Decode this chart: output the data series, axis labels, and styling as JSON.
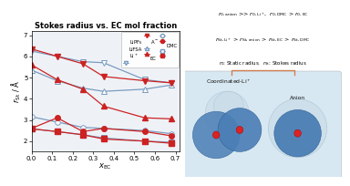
{
  "title": "Stokes radius vs. EC mol fraction",
  "xlim": [
    0.0,
    0.72
  ],
  "ylim": [
    1.5,
    7.2
  ],
  "yticks": [
    2,
    3,
    4,
    5,
    6,
    7
  ],
  "xticks": [
    0.0,
    0.1,
    0.2,
    0.3,
    0.4,
    0.5,
    0.6,
    0.7
  ],
  "LiPF6_Li": {
    "x": [
      0.0,
      0.125,
      0.25,
      0.35,
      0.55,
      0.68
    ],
    "y": [
      6.25,
      6.0,
      5.75,
      5.7,
      4.9,
      4.75
    ]
  },
  "LiPF6_A": {
    "x": [
      0.0,
      0.125,
      0.25,
      0.35,
      0.55,
      0.68
    ],
    "y": [
      5.35,
      4.85,
      4.5,
      4.35,
      4.45,
      4.65
    ]
  },
  "LiPF6_EC": {
    "x": [
      0.0,
      0.125,
      0.25,
      0.35,
      0.55,
      0.68
    ],
    "y": [
      3.15,
      2.9,
      2.65,
      2.6,
      2.5,
      2.35
    ]
  },
  "LiPF6_DMC": {
    "x": [
      0.0,
      0.125,
      0.25,
      0.35,
      0.55,
      0.68
    ],
    "y": [
      2.58,
      2.45,
      2.3,
      2.15,
      2.0,
      1.95
    ]
  },
  "LiFSA_Li": {
    "x": [
      0.0,
      0.125,
      0.25,
      0.35,
      0.55,
      0.68
    ],
    "y": [
      6.35,
      6.0,
      5.65,
      5.05,
      4.85,
      4.75
    ]
  },
  "LiFSA_A": {
    "x": [
      0.0,
      0.125,
      0.25,
      0.35,
      0.55,
      0.68
    ],
    "y": [
      5.6,
      4.9,
      4.45,
      3.65,
      3.1,
      3.05
    ]
  },
  "LiFSA_EC": {
    "x": [
      0.0,
      0.125,
      0.25,
      0.35,
      0.55,
      0.68
    ],
    "y": [
      2.6,
      3.1,
      2.45,
      2.6,
      2.45,
      2.25
    ]
  },
  "LiFSA_DMC": {
    "x": [
      0.0,
      0.125,
      0.25,
      0.35,
      0.55,
      0.68
    ],
    "y": [
      2.58,
      2.45,
      2.3,
      2.1,
      2.0,
      1.9
    ]
  },
  "blue": "#7a9bbf",
  "red": "#cc2222",
  "plot_bg": "#eef2f7"
}
